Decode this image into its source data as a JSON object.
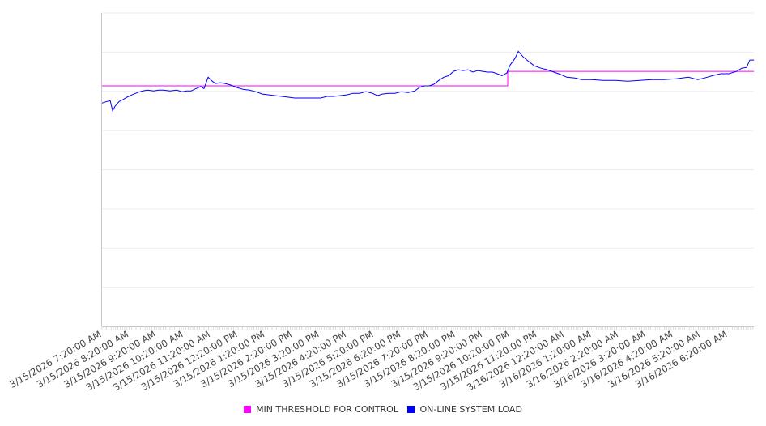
{
  "chart_data": {
    "type": "line",
    "title": "",
    "xlabel": "",
    "ylabel": "",
    "x_unit": "hours since 3/15/2026 7:20:00 AM",
    "xlim": [
      0,
      23.96
    ],
    "ylim": [
      0,
      8
    ],
    "y_gridlines": 8,
    "y_tick_labels_shown": false,
    "grid": true,
    "legend_position": "bottom",
    "x_tick_labels": [
      "3/15/2026 7:20:00 AM",
      "3/15/2026 8:20:00 AM",
      "3/15/2026 9:20:00 AM",
      "3/15/2026 10:20:00 AM",
      "3/15/2026 11:20:00 AM",
      "3/15/2026 12:20:00 PM",
      "3/15/2026 1:20:00 PM",
      "3/15/2026 2:20:00 PM",
      "3/15/2026 3:20:00 PM",
      "3/15/2026 4:20:00 PM",
      "3/15/2026 5:20:00 PM",
      "3/15/2026 6:20:00 PM",
      "3/15/2026 7:20:00 PM",
      "3/15/2026 8:20:00 PM",
      "3/15/2026 9:20:00 PM",
      "3/15/2026 10:20:00 PM",
      "3/15/2026 11:20:00 PM",
      "3/16/2026 12:20:00 AM",
      "3/16/2026 1:20:00 AM",
      "3/16/2026 2:20:00 AM",
      "3/16/2026 3:20:00 AM",
      "3/16/2026 4:20:00 AM",
      "3/16/2026 5:20:00 AM",
      "3/16/2026 6:20:00 AM"
    ],
    "series": [
      {
        "name": "MIN THRESHOLD FOR CONTROL",
        "color": "#ff00ff",
        "step": true,
        "x": [
          0,
          14.91,
          14.91,
          23.96
        ],
        "y": [
          6.14,
          6.14,
          6.51,
          6.51
        ]
      },
      {
        "name": "ON-LINE SYSTEM LOAD",
        "color": "#0000ff",
        "x": [
          0,
          0.18,
          0.3,
          0.39,
          0.48,
          0.63,
          0.77,
          0.92,
          1.1,
          1.31,
          1.49,
          1.67,
          1.9,
          2.08,
          2.26,
          2.5,
          2.74,
          2.95,
          3.1,
          3.27,
          3.45,
          3.63,
          3.75,
          3.9,
          4.05,
          4.17,
          4.35,
          4.52,
          4.73,
          4.94,
          5.18,
          5.42,
          5.65,
          5.89,
          6.13,
          6.37,
          6.61,
          6.85,
          7.08,
          7.32,
          7.56,
          7.8,
          8.04,
          8.27,
          8.51,
          8.75,
          8.99,
          9.23,
          9.46,
          9.7,
          9.94,
          10.12,
          10.3,
          10.54,
          10.77,
          11.01,
          11.25,
          11.49,
          11.67,
          11.85,
          12.02,
          12.2,
          12.38,
          12.56,
          12.74,
          12.92,
          13.1,
          13.27,
          13.45,
          13.63,
          13.81,
          13.99,
          14.17,
          14.35,
          14.52,
          14.7,
          14.88,
          15.0,
          15.18,
          15.3,
          15.48,
          15.65,
          15.89,
          16.13,
          16.37,
          16.61,
          16.85,
          17.08,
          17.38,
          17.62,
          17.98,
          18.42,
          18.87,
          19.32,
          19.76,
          20.21,
          20.65,
          21.1,
          21.55,
          21.79,
          21.9,
          22.14,
          22.44,
          22.74,
          23.04,
          23.33,
          23.51,
          23.69,
          23.81,
          23.96
        ],
        "y": [
          5.7,
          5.74,
          5.76,
          5.5,
          5.62,
          5.74,
          5.79,
          5.85,
          5.91,
          5.97,
          6.01,
          6.03,
          6.01,
          6.03,
          6.03,
          6.01,
          6.03,
          5.99,
          6.01,
          6.01,
          6.07,
          6.12,
          6.07,
          6.36,
          6.26,
          6.2,
          6.22,
          6.2,
          6.16,
          6.1,
          6.05,
          6.03,
          5.99,
          5.93,
          5.91,
          5.89,
          5.87,
          5.85,
          5.83,
          5.83,
          5.83,
          5.83,
          5.83,
          5.87,
          5.87,
          5.89,
          5.91,
          5.95,
          5.95,
          5.99,
          5.95,
          5.89,
          5.93,
          5.95,
          5.95,
          5.99,
          5.97,
          6.01,
          6.1,
          6.14,
          6.14,
          6.18,
          6.28,
          6.36,
          6.4,
          6.51,
          6.55,
          6.53,
          6.55,
          6.49,
          6.53,
          6.51,
          6.49,
          6.49,
          6.45,
          6.4,
          6.47,
          6.67,
          6.84,
          7.02,
          6.88,
          6.78,
          6.65,
          6.59,
          6.55,
          6.49,
          6.43,
          6.36,
          6.34,
          6.3,
          6.3,
          6.28,
          6.28,
          6.26,
          6.28,
          6.3,
          6.3,
          6.32,
          6.36,
          6.32,
          6.3,
          6.34,
          6.4,
          6.45,
          6.45,
          6.51,
          6.59,
          6.61,
          6.8,
          6.8
        ]
      }
    ]
  }
}
